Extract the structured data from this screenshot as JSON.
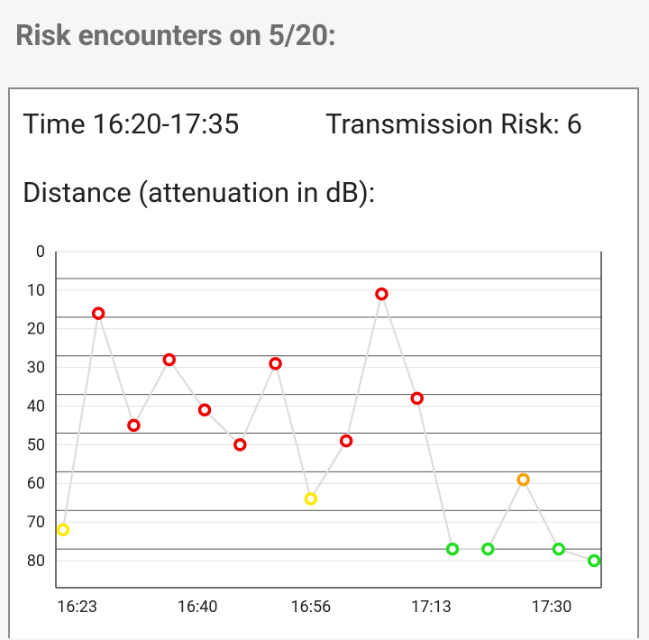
{
  "heading": "Risk encounters on 5/20:",
  "card": {
    "time": "Time 16:20-17:35",
    "transmission_risk": "Transmission Risk: 6",
    "distance_title": "Distance (attenuation in dB):"
  },
  "chart_data": {
    "type": "line",
    "ylabel": "Distance (attenuation in dB):",
    "y_ticks": [
      "0",
      "10",
      "20",
      "30",
      "40",
      "50",
      "60",
      "70",
      "80"
    ],
    "ylim": [
      0,
      87
    ],
    "y_inverted": true,
    "x_ticks": [
      "16:23",
      "16:40",
      "16:56",
      "17:13",
      "17:30"
    ],
    "x_tick_minutes": [
      3,
      20,
      36,
      53,
      70
    ],
    "xlim_minutes": [
      0,
      77
    ],
    "x_start_time": "16:20",
    "line_color": "#dddddd",
    "points": [
      {
        "x": 1,
        "y": 72,
        "color": "#ffea00"
      },
      {
        "x": 6,
        "y": 16,
        "color": "#ee0000"
      },
      {
        "x": 11,
        "y": 45,
        "color": "#ee0000"
      },
      {
        "x": 16,
        "y": 28,
        "color": "#ee0000"
      },
      {
        "x": 21,
        "y": 41,
        "color": "#ee0000"
      },
      {
        "x": 26,
        "y": 50,
        "color": "#ee0000"
      },
      {
        "x": 31,
        "y": 29,
        "color": "#ee0000"
      },
      {
        "x": 36,
        "y": 64,
        "color": "#ffea00"
      },
      {
        "x": 41,
        "y": 49,
        "color": "#ee0000"
      },
      {
        "x": 46,
        "y": 11,
        "color": "#ee0000"
      },
      {
        "x": 51,
        "y": 38,
        "color": "#ee0000"
      },
      {
        "x": 56,
        "y": 77,
        "color": "#22dd22"
      },
      {
        "x": 61,
        "y": 77,
        "color": "#22dd22"
      },
      {
        "x": 66,
        "y": 59,
        "color": "#f5a000"
      },
      {
        "x": 71,
        "y": 77,
        "color": "#22dd22"
      },
      {
        "x": 76,
        "y": 80,
        "color": "#22dd22"
      }
    ]
  }
}
